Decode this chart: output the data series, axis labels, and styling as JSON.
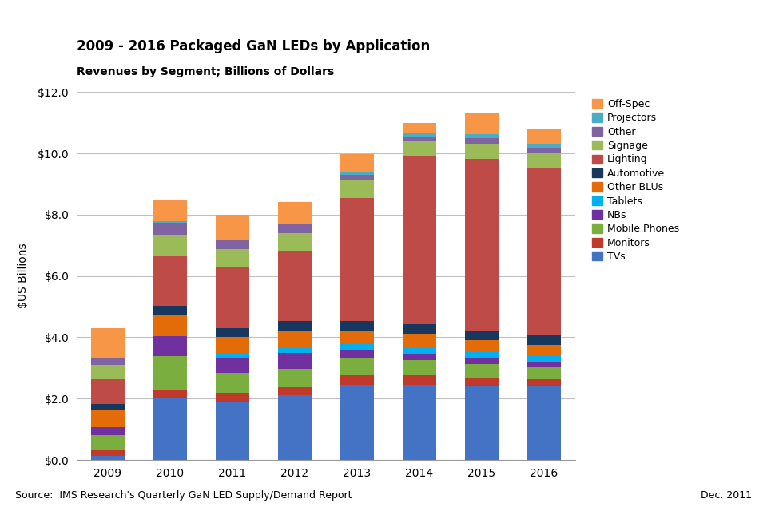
{
  "years": [
    "2009",
    "2010",
    "2011",
    "2012",
    "2013",
    "2014",
    "2015",
    "2016"
  ],
  "segments": [
    {
      "name": "TVs",
      "color": "#4472C4",
      "values": [
        0.12,
        2.0,
        1.9,
        2.1,
        2.45,
        2.45,
        2.4,
        2.4
      ]
    },
    {
      "name": "Monitors",
      "color": "#C0392B",
      "values": [
        0.18,
        0.28,
        0.28,
        0.28,
        0.3,
        0.3,
        0.28,
        0.22
      ]
    },
    {
      "name": "Mobile Phones",
      "color": "#7AAF3F",
      "values": [
        0.5,
        1.1,
        0.65,
        0.6,
        0.55,
        0.5,
        0.45,
        0.4
      ]
    },
    {
      "name": "NBs",
      "color": "#7030A0",
      "values": [
        0.28,
        0.65,
        0.5,
        0.5,
        0.3,
        0.22,
        0.18,
        0.18
      ]
    },
    {
      "name": "Tablets",
      "color": "#00B0F0",
      "values": [
        0.0,
        0.0,
        0.15,
        0.2,
        0.22,
        0.22,
        0.22,
        0.22
      ]
    },
    {
      "name": "Other BLUs",
      "color": "#E36C09",
      "values": [
        0.55,
        0.68,
        0.52,
        0.52,
        0.4,
        0.42,
        0.38,
        0.33
      ]
    },
    {
      "name": "Automotive",
      "color": "#17375E",
      "values": [
        0.2,
        0.32,
        0.3,
        0.32,
        0.32,
        0.32,
        0.32,
        0.32
      ]
    },
    {
      "name": "Lighting",
      "color": "#BE4B48",
      "values": [
        0.8,
        1.6,
        2.0,
        2.3,
        4.0,
        5.5,
        5.6,
        5.45
      ]
    },
    {
      "name": "Signage",
      "color": "#9BBB59",
      "values": [
        0.48,
        0.72,
        0.58,
        0.58,
        0.58,
        0.48,
        0.48,
        0.48
      ]
    },
    {
      "name": "Other",
      "color": "#8064A2",
      "values": [
        0.22,
        0.38,
        0.27,
        0.27,
        0.18,
        0.13,
        0.18,
        0.18
      ]
    },
    {
      "name": "Projectors",
      "color": "#4BACC6",
      "values": [
        0.0,
        0.05,
        0.05,
        0.05,
        0.08,
        0.1,
        0.13,
        0.13
      ]
    },
    {
      "name": "Off-Spec",
      "color": "#F79646",
      "values": [
        0.97,
        0.72,
        0.8,
        0.68,
        0.6,
        0.35,
        0.72,
        0.47
      ]
    }
  ],
  "title": "2009 - 2016 Packaged GaN LEDs by Application",
  "subtitle": "Revenues by Segment; Billions of Dollars",
  "ylabel": "$US Billions",
  "ylim": [
    0,
    12.0
  ],
  "yticks": [
    0,
    2.0,
    4.0,
    6.0,
    8.0,
    10.0,
    12.0
  ],
  "ytick_labels": [
    "$0.0",
    "$2.0",
    "$4.0",
    "$6.0",
    "$8.0",
    "$10.0",
    "$12.0"
  ],
  "source_text": "Source:  IMS Research's Quarterly GaN LED Supply/Demand Report",
  "date_text": "Dec. 2011",
  "background_color": "#FFFFFF",
  "plot_background_color": "#FFFFFF",
  "grid_color": "#C0C0C0"
}
